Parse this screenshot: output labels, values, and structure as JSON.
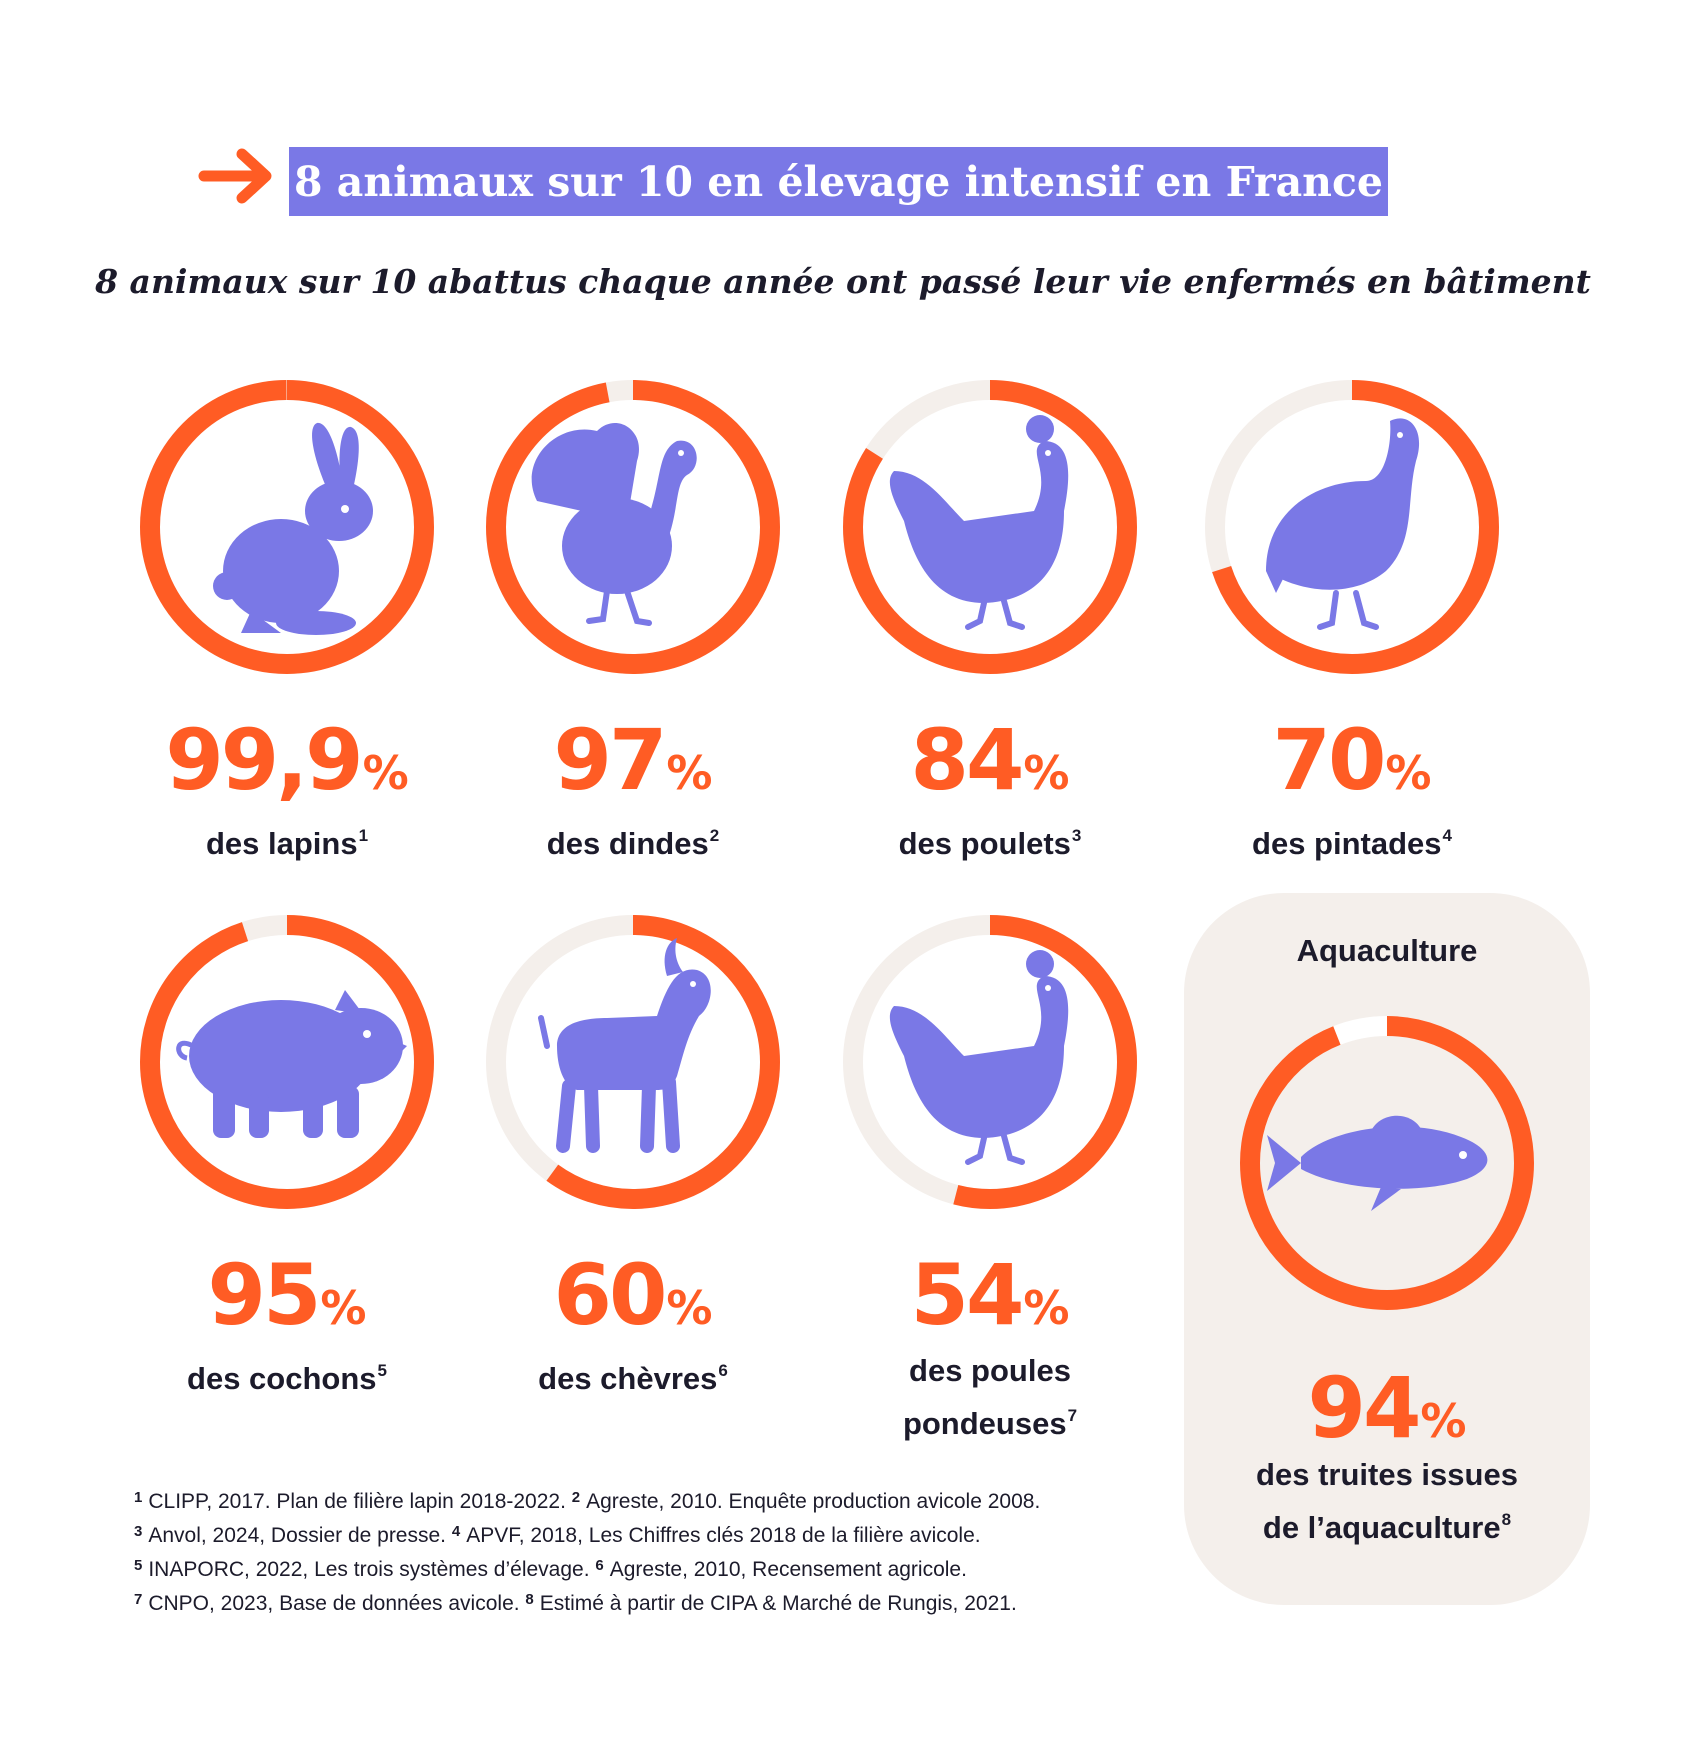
{
  "header": {
    "title": "8 animaux sur 10 en élevage intensif en France",
    "subtitle": "8 animaux sur 10 abattus chaque année ont passé leur vie enfermés en bâtiment"
  },
  "colors": {
    "accent": "#ff5c24",
    "track": "#f4efeb",
    "icon": "#7a78e6",
    "text": "#1c1b2b"
  },
  "aquaculture": {
    "title": "Aquaculture"
  },
  "chart_data": {
    "type": "donut",
    "unit": "%",
    "items": [
      {
        "value": 99.9,
        "display": "99,9",
        "label": "des lapins",
        "note": "1",
        "icon": "rabbit-icon"
      },
      {
        "value": 97,
        "display": "97",
        "label": "des dindes",
        "note": "2",
        "icon": "turkey-icon"
      },
      {
        "value": 84,
        "display": "84",
        "label": "des poulets",
        "note": "3",
        "icon": "chicken-icon"
      },
      {
        "value": 70,
        "display": "70",
        "label": "des pintades",
        "note": "4",
        "icon": "guinea-fowl-icon"
      },
      {
        "value": 95,
        "display": "95",
        "label": "des cochons",
        "note": "5",
        "icon": "pig-icon"
      },
      {
        "value": 60,
        "display": "60",
        "label": "des chèvres",
        "note": "6",
        "icon": "goat-icon"
      },
      {
        "value": 54,
        "display": "54",
        "label_line1": "des poules",
        "label_line2": "pondeuses",
        "note": "7",
        "icon": "hen-icon"
      },
      {
        "value": 94,
        "display": "94",
        "label_line1": "des truites issues",
        "label_line2": "de l’aquaculture",
        "note": "8",
        "icon": "trout-icon"
      }
    ]
  },
  "footnotes": [
    {
      "n1": "1",
      "t1": "CLIPP, 2017. Plan de filière lapin 2018-2022.",
      "n2": "2",
      "t2": "Agreste, 2010. Enquête production avicole 2008."
    },
    {
      "n1": "3",
      "t1": "Anvol, 2024, Dossier de presse.",
      "n2": "4",
      "t2": "APVF, 2018, Les Chiffres clés 2018 de la filière avicole."
    },
    {
      "n1": "5",
      "t1": "INAPORC, 2022, Les trois systèmes d’élevage.",
      "n2": "6",
      "t2": "Agreste, 2010, Recensement agricole."
    },
    {
      "n1": "7",
      "t1": "CNPO, 2023, Base de données avicole.",
      "n2": "8",
      "t2": "Estimé à partir de CIPA & Marché de Rungis, 2021."
    }
  ]
}
